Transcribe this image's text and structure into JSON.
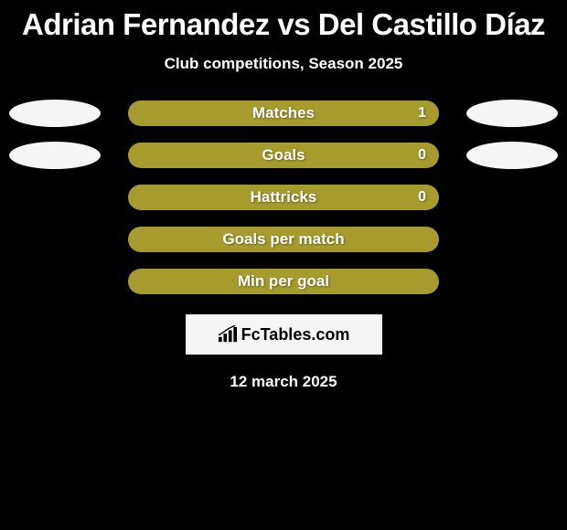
{
  "title": "Adrian Fernandez vs Del Castillo Díaz",
  "subtitle": "Club competitions, Season 2025",
  "date": "12 march 2025",
  "logo_text": "FcTables.com",
  "ellipse_color": "#f5f5f5",
  "stats": [
    {
      "label": "Matches",
      "value": "1",
      "bar_color": "#a79b2d",
      "show_value": true,
      "left_ellipse": true,
      "right_ellipse": true
    },
    {
      "label": "Goals",
      "value": "0",
      "bar_color": "#a79b2d",
      "show_value": true,
      "left_ellipse": true,
      "right_ellipse": true
    },
    {
      "label": "Hattricks",
      "value": "0",
      "bar_color": "#a79b2d",
      "show_value": true,
      "left_ellipse": false,
      "right_ellipse": false
    },
    {
      "label": "Goals per match",
      "value": "",
      "bar_color": "#a79b2d",
      "show_value": false,
      "left_ellipse": false,
      "right_ellipse": false
    },
    {
      "label": "Min per goal",
      "value": "",
      "bar_color": "#a79b2d",
      "show_value": false,
      "left_ellipse": false,
      "right_ellipse": false
    }
  ]
}
